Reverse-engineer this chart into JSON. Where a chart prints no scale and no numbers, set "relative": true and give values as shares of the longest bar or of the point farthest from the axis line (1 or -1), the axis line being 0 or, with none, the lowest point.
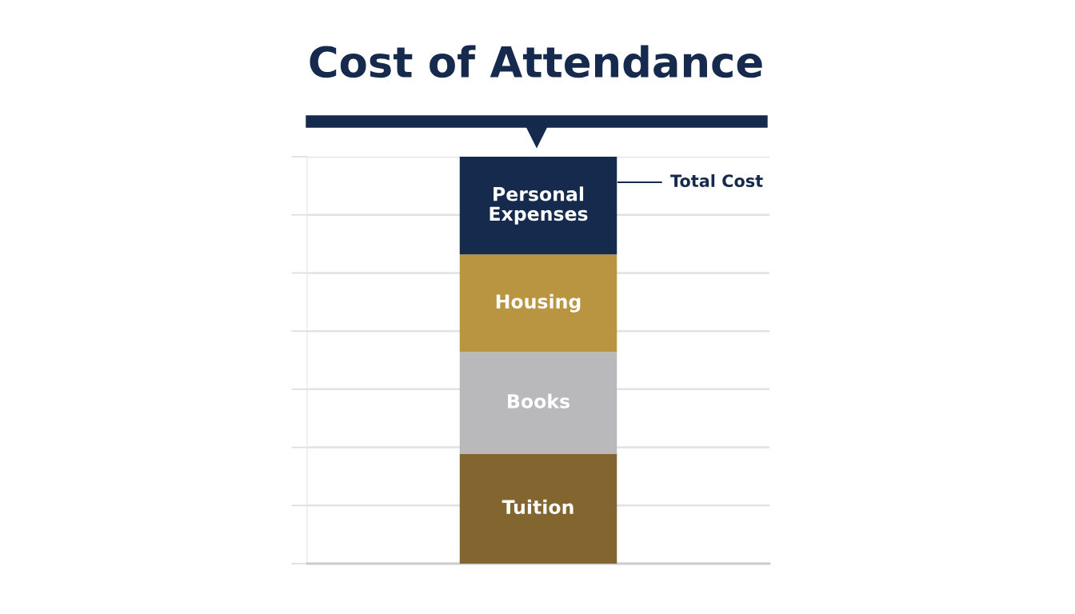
{
  "chart_data": {
    "type": "bar",
    "title": "Cost of Attendance",
    "categories": [
      null
    ],
    "stacked": true,
    "relative": true,
    "series": [
      {
        "name": "Tuition",
        "color": "#83652f",
        "values": [
          0.27
        ]
      },
      {
        "name": "Books",
        "color": "#b9b9bb",
        "values": [
          0.25
        ]
      },
      {
        "name": "Housing",
        "color": "#b99441",
        "values": [
          0.24
        ]
      },
      {
        "name": "Personal Expenses",
        "color": "#152a4d",
        "values": [
          0.24
        ]
      }
    ],
    "annotations": [
      "Total Cost"
    ],
    "grid": "y",
    "legend": false
  }
}
